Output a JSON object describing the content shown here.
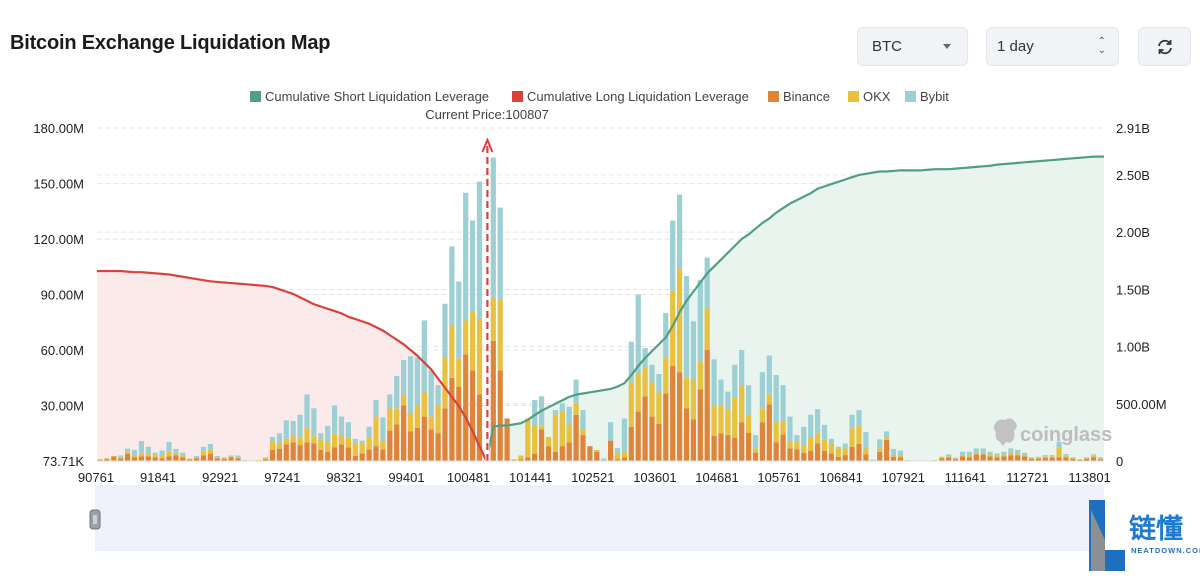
{
  "header": {
    "title": "Bitcoin Exchange Liquidation Map",
    "symbol_select": "BTC",
    "range_select": "1 day",
    "refresh_icon": "refresh-icon"
  },
  "watermark": "coinglass",
  "logo": {
    "text": "链懂",
    "sub": "NEATDOWN.COM"
  },
  "colors": {
    "short": "#4f9f82",
    "long": "#d8423d",
    "binance": "#df853a",
    "okx": "#e8c13e",
    "bybit": "#9dd0d4",
    "short_fill": "#e9f4ef",
    "long_fill": "#fbeaea",
    "navigator": "#eef1fb"
  },
  "chart_data": {
    "type": "bar+line",
    "title": "",
    "current_price_label": "Current Price:100807",
    "legend": [
      "Cumulative Short Liquidation Leverage",
      "Cumulative Long Liquidation Leverage",
      "Binance",
      "OKX",
      "Bybit"
    ],
    "legend_position": "top-center",
    "x_tick_labels": [
      "90761",
      "91841",
      "92921",
      "97241",
      "98321",
      "99401",
      "100481",
      "101441",
      "102521",
      "103601",
      "104681",
      "105761",
      "106841",
      "107921",
      "111641",
      "112721",
      "113801"
    ],
    "x_tick_every_n_bars": 9,
    "current_price_bar": 56,
    "y_left": {
      "unit": "M",
      "ylim": [
        0,
        180
      ],
      "tick_values": [
        0,
        30,
        60,
        90,
        120,
        150,
        180
      ],
      "tick_labels": [
        "73.71K",
        "30.00M",
        "60.00M",
        "90.00M",
        "120.00M",
        "150.00M",
        "180.00M"
      ]
    },
    "y_right": {
      "unit": "B",
      "ylim": [
        0,
        2.91
      ],
      "tick_values": [
        0,
        0.5,
        1,
        1.5,
        2,
        2.5,
        2.91
      ],
      "tick_labels": [
        "0",
        "500.00M",
        "1.00B",
        "1.50B",
        "2.00B",
        "2.50B",
        "2.91B"
      ]
    },
    "grid": true,
    "stacked_series": [
      {
        "name": "Binance",
        "values": [
          0.5,
          1,
          2.4,
          1.5,
          4,
          2,
          2.5,
          2.5,
          2,
          1.5,
          2.5,
          3,
          2,
          0.8,
          1.5,
          3,
          4,
          1.5,
          1.2,
          2,
          1.5,
          0,
          0,
          0,
          1,
          6,
          6.5,
          9,
          10,
          8.6,
          10,
          9.5,
          6,
          5,
          7.4,
          9,
          7.4,
          2.7,
          4,
          6.3,
          8,
          6.3,
          16.4,
          19.8,
          30,
          16,
          18,
          24,
          17,
          15,
          28.5,
          45,
          40,
          57.6,
          49,
          36,
          0,
          65,
          49,
          23,
          0,
          1,
          2,
          4,
          17,
          8,
          5,
          8,
          10,
          25,
          14,
          8,
          5,
          0,
          11,
          1,
          2,
          18.5,
          26.7,
          35,
          24,
          20,
          36.6,
          51.5,
          48,
          28.5,
          22.5,
          38.7,
          60,
          13.7,
          15,
          14,
          12.6,
          21,
          15.3,
          4.5,
          21,
          30.6,
          10,
          14.4,
          6.8,
          6.3,
          4.5,
          5.6,
          9.5,
          5.4,
          4.1,
          2.3,
          3.2,
          7.7,
          9.2,
          3.6,
          0,
          5,
          11.4,
          2.3,
          2,
          0,
          0,
          0,
          0,
          0,
          1.5,
          2,
          1,
          2.5,
          2,
          3.5,
          3.5,
          2.5,
          2,
          2.5,
          3,
          3,
          2.5,
          1.2,
          1.3,
          1.8,
          1.8,
          2,
          2,
          1.2,
          0.6,
          1.2,
          2,
          1
        ]
      },
      {
        "name": "OKX",
        "values": [
          0.5,
          0.5,
          0.3,
          0.5,
          1,
          1,
          2,
          1.5,
          1,
          1.5,
          2.5,
          1.5,
          1,
          0.5,
          0.7,
          2,
          2,
          0.5,
          0.3,
          0.5,
          0.5,
          0,
          0,
          0.5,
          0.5,
          4.5,
          3,
          3,
          4,
          4,
          7.7,
          4,
          5.4,
          5.5,
          7.6,
          5,
          5.2,
          7.2,
          5.8,
          6.3,
          16,
          4.2,
          12,
          8.7,
          5.7,
          9.4,
          12,
          13,
          7,
          15,
          27.5,
          28.5,
          15.5,
          18.4,
          32,
          41,
          0,
          23.5,
          38,
          0,
          1,
          2,
          21,
          15.5,
          2,
          5,
          20,
          18.7,
          9.8,
          6.5,
          2.8,
          0,
          1,
          0,
          0,
          3,
          3,
          24,
          20.3,
          15.6,
          18.5,
          17,
          19.4,
          40.5,
          56,
          16.5,
          21.3,
          15,
          22.5,
          16,
          14.7,
          14,
          21.8,
          20,
          9,
          2.3,
          7.5,
          5.4,
          11,
          7.4,
          3.7,
          4.2,
          4.1,
          7.4,
          5.8,
          6,
          5.1,
          4.5,
          3.6,
          10,
          9.8,
          3.2,
          0,
          1.8,
          1.4,
          1,
          0.7,
          0.5,
          0,
          0,
          0,
          0.5,
          0.8,
          0.5,
          0.3,
          0.5,
          1,
          1,
          1,
          1,
          1,
          1,
          1.5,
          1,
          0.8,
          0.4,
          0.5,
          0.7,
          0.7,
          5,
          0.8,
          0.4,
          0.2,
          0.4,
          0.8,
          0.3
        ]
      },
      {
        "name": "Bybit",
        "values": [
          0,
          0,
          0,
          1,
          1.7,
          3,
          6.3,
          3.7,
          1.5,
          2.6,
          5.3,
          2,
          1.5,
          0,
          0.5,
          2.7,
          3.2,
          0.7,
          0.5,
          0.5,
          1,
          0.5,
          0,
          0,
          0.5,
          2.5,
          5.5,
          10,
          7.6,
          12.4,
          18.3,
          15,
          3.6,
          8.5,
          15,
          10,
          8.4,
          2.1,
          1.2,
          5.9,
          9,
          13.1,
          7.6,
          17.5,
          18.9,
          31.2,
          26,
          39,
          25,
          11,
          29,
          42.5,
          41.5,
          69,
          49,
          74,
          0,
          75.5,
          50,
          0,
          0,
          0,
          0,
          13.5,
          16,
          0,
          2.5,
          4.5,
          9.5,
          12.5,
          10.7,
          0,
          0,
          1.4,
          10,
          3,
          18,
          22,
          43,
          10.4,
          9.5,
          10,
          24,
          38,
          40,
          55,
          31.7,
          44.3,
          27.5,
          25.3,
          14.3,
          9.5,
          17.6,
          19,
          16.7,
          7.2,
          19.5,
          21,
          25.5,
          19.2,
          13.5,
          3.5,
          9.9,
          12,
          12.7,
          8.1,
          2.8,
          0.9,
          2.7,
          7.3,
          8.5,
          8.9,
          0.7,
          4.9,
          3.2,
          3.2,
          2.9,
          0,
          0.3,
          0,
          0,
          0,
          0,
          1.1,
          0.5,
          2,
          2,
          2.3,
          2.3,
          1.5,
          1.1,
          1.5,
          2.3,
          2,
          1.2,
          0.4,
          0.5,
          0.7,
          0.7,
          3.5,
          1,
          0.4,
          0.2,
          0.4,
          0.8,
          0.7
        ]
      }
    ],
    "line_series": [
      {
        "name": "Cumulative Long Liquidation Leverage",
        "axis": "right",
        "values": [
          1.66,
          1.66,
          1.66,
          1.66,
          1.655,
          1.65,
          1.65,
          1.645,
          1.64,
          1.635,
          1.63,
          1.62,
          1.61,
          1.6,
          1.59,
          1.58,
          1.57,
          1.565,
          1.56,
          1.555,
          1.55,
          1.545,
          1.54,
          1.535,
          1.53,
          1.52,
          1.5,
          1.48,
          1.46,
          1.43,
          1.4,
          1.37,
          1.35,
          1.33,
          1.31,
          1.29,
          1.26,
          1.24,
          1.22,
          1.2,
          1.17,
          1.14,
          1.1,
          1.06,
          1.02,
          0.97,
          0.92,
          0.86,
          0.8,
          0.72,
          0.64,
          0.56,
          0.48,
          0.38,
          0.26,
          0.13,
          0,
          null,
          null,
          null,
          null,
          null,
          null,
          null,
          null,
          null,
          null,
          null,
          null,
          null,
          null,
          null,
          null,
          null,
          null,
          null,
          null,
          null,
          null,
          null,
          null,
          null,
          null,
          null,
          null,
          null,
          null,
          null,
          null,
          null,
          null,
          null,
          null,
          null,
          null,
          null,
          null,
          null,
          null,
          null,
          null,
          null,
          null,
          null,
          null,
          null,
          null,
          null,
          null,
          null,
          null,
          null,
          null,
          null,
          null,
          null,
          null,
          null,
          null,
          null,
          null,
          null,
          null,
          null,
          null,
          null,
          null,
          null,
          null,
          null,
          null,
          null,
          null,
          null,
          null,
          null,
          null,
          null,
          null,
          null,
          null,
          null
        ]
      },
      {
        "name": "Cumulative Short Liquidation Leverage",
        "axis": "right",
        "values": [
          null,
          null,
          null,
          null,
          null,
          null,
          null,
          null,
          null,
          null,
          null,
          null,
          null,
          null,
          null,
          null,
          null,
          null,
          null,
          null,
          null,
          null,
          null,
          null,
          null,
          null,
          null,
          null,
          null,
          null,
          null,
          null,
          null,
          null,
          null,
          null,
          null,
          null,
          null,
          null,
          null,
          null,
          null,
          null,
          null,
          null,
          null,
          null,
          null,
          null,
          null,
          null,
          null,
          null,
          null,
          null,
          0,
          0.3,
          0.31,
          0.31,
          0.32,
          0.33,
          0.36,
          0.4,
          0.44,
          0.47,
          0.5,
          0.53,
          0.56,
          0.58,
          0.59,
          0.6,
          0.61,
          0.62,
          0.63,
          0.65,
          0.68,
          0.75,
          0.83,
          0.9,
          0.96,
          1.02,
          1.08,
          1.18,
          1.3,
          1.4,
          1.48,
          1.56,
          1.64,
          1.7,
          1.76,
          1.82,
          1.88,
          1.94,
          1.98,
          2.03,
          2.08,
          2.12,
          2.17,
          2.21,
          2.25,
          2.28,
          2.31,
          2.34,
          2.38,
          2.4,
          2.42,
          2.44,
          2.46,
          2.48,
          2.5,
          2.51,
          2.52,
          2.53,
          2.53,
          2.535,
          2.54,
          2.54,
          2.54,
          2.54,
          2.545,
          2.55,
          2.55,
          2.55,
          2.555,
          2.56,
          2.565,
          2.57,
          2.575,
          2.58,
          2.59,
          2.595,
          2.6,
          2.605,
          2.61,
          2.615,
          2.62,
          2.625,
          2.63,
          2.635,
          2.64,
          2.645,
          2.65,
          2.655,
          2.66,
          2.66
        ]
      }
    ]
  }
}
